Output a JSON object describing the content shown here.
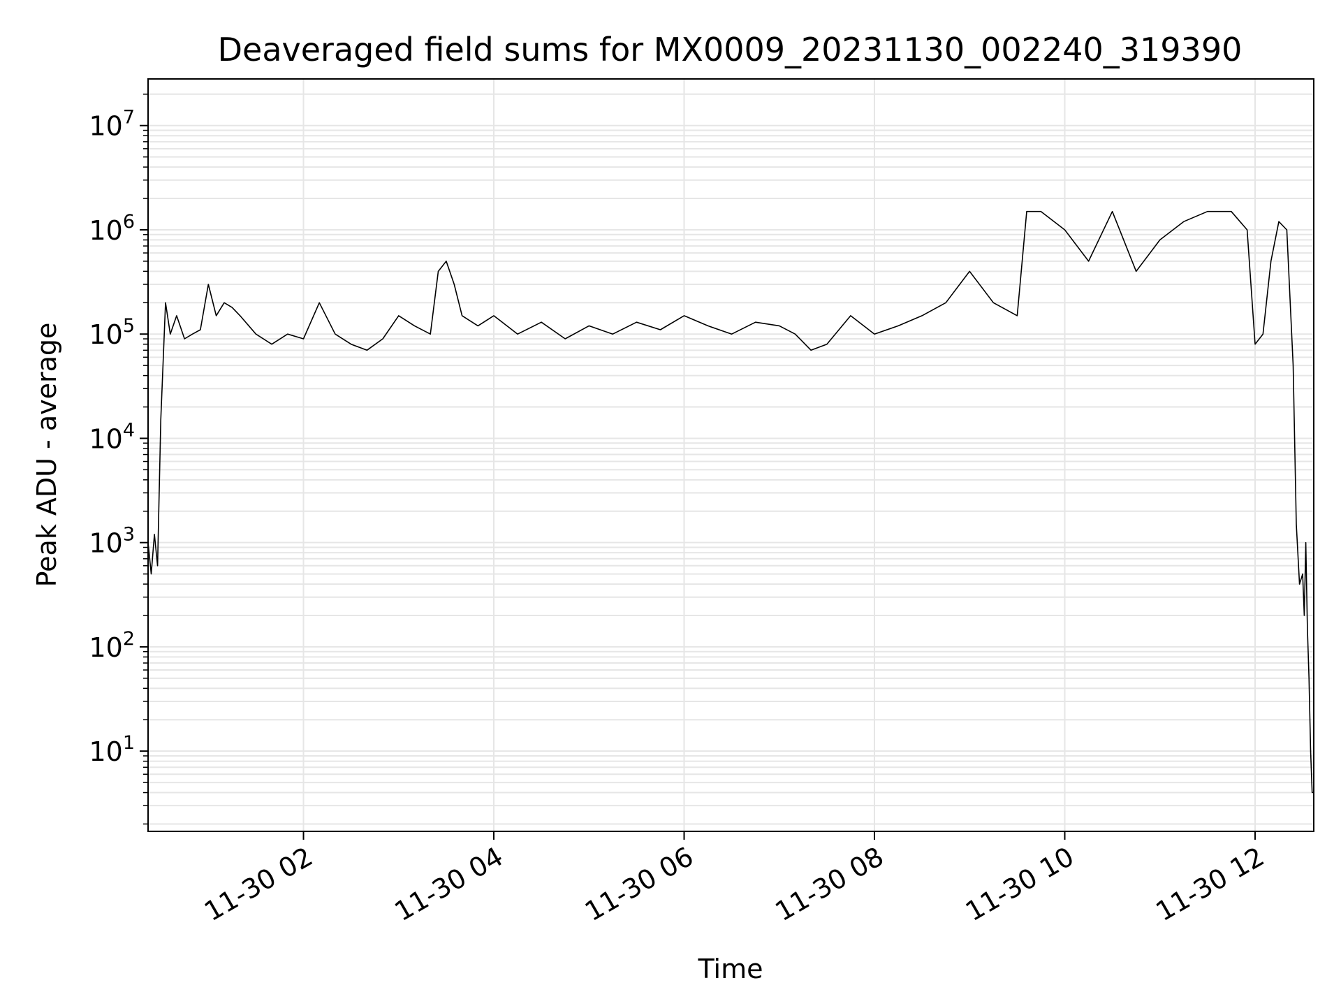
{
  "chart_data": {
    "type": "line",
    "title": "Deaveraged field sums for MX0009_20231130_002240_319390",
    "xlabel": "Time",
    "ylabel": "Peak ADU - average",
    "y_scale": "log",
    "ylim": [
      1.7,
      28000000
    ],
    "xlim": [
      "2023-11-30 00:22",
      "2023-11-30 12:37"
    ],
    "grid": true,
    "grid_color": "#e6e6e6",
    "line_color": "#000000",
    "x_ticks": [
      {
        "value": "2023-11-30 02:00",
        "label": "11-30 02"
      },
      {
        "value": "2023-11-30 04:00",
        "label": "11-30 04"
      },
      {
        "value": "2023-11-30 06:00",
        "label": "11-30 06"
      },
      {
        "value": "2023-11-30 08:00",
        "label": "11-30 08"
      },
      {
        "value": "2023-11-30 10:00",
        "label": "11-30 10"
      },
      {
        "value": "2023-11-30 12:00",
        "label": "11-30 12"
      }
    ],
    "y_ticks": [
      {
        "value": 10,
        "base": "10",
        "exp": "1"
      },
      {
        "value": 100,
        "base": "10",
        "exp": "2"
      },
      {
        "value": 1000,
        "base": "10",
        "exp": "3"
      },
      {
        "value": 10000,
        "base": "10",
        "exp": "4"
      },
      {
        "value": 100000,
        "base": "10",
        "exp": "5"
      },
      {
        "value": 1000000,
        "base": "10",
        "exp": "6"
      },
      {
        "value": 10000000,
        "base": "10",
        "exp": "7"
      }
    ],
    "series": [
      {
        "x": [
          "2023-11-30 00:22",
          "2023-11-30 00:24",
          "2023-11-30 00:26",
          "2023-11-30 00:28",
          "2023-11-30 00:30",
          "2023-11-30 00:33",
          "2023-11-30 00:36",
          "2023-11-30 00:40",
          "2023-11-30 00:45",
          "2023-11-30 00:50",
          "2023-11-30 00:55",
          "2023-11-30 01:00",
          "2023-11-30 01:05",
          "2023-11-30 01:10",
          "2023-11-30 01:15",
          "2023-11-30 01:20",
          "2023-11-30 01:30",
          "2023-11-30 01:40",
          "2023-11-30 01:50",
          "2023-11-30 02:00",
          "2023-11-30 02:10",
          "2023-11-30 02:20",
          "2023-11-30 02:30",
          "2023-11-30 02:40",
          "2023-11-30 02:50",
          "2023-11-30 03:00",
          "2023-11-30 03:10",
          "2023-11-30 03:20",
          "2023-11-30 03:25",
          "2023-11-30 03:30",
          "2023-11-30 03:35",
          "2023-11-30 03:40",
          "2023-11-30 03:50",
          "2023-11-30 04:00",
          "2023-11-30 04:15",
          "2023-11-30 04:30",
          "2023-11-30 04:45",
          "2023-11-30 05:00",
          "2023-11-30 05:15",
          "2023-11-30 05:30",
          "2023-11-30 05:45",
          "2023-11-30 06:00",
          "2023-11-30 06:15",
          "2023-11-30 06:30",
          "2023-11-30 06:45",
          "2023-11-30 07:00",
          "2023-11-30 07:10",
          "2023-11-30 07:20",
          "2023-11-30 07:30",
          "2023-11-30 07:45",
          "2023-11-30 08:00",
          "2023-11-30 08:15",
          "2023-11-30 08:30",
          "2023-11-30 08:45",
          "2023-11-30 09:00",
          "2023-11-30 09:15",
          "2023-11-30 09:30",
          "2023-11-30 09:36",
          "2023-11-30 09:45",
          "2023-11-30 10:00",
          "2023-11-30 10:15",
          "2023-11-30 10:30",
          "2023-11-30 10:45",
          "2023-11-30 11:00",
          "2023-11-30 11:15",
          "2023-11-30 11:30",
          "2023-11-30 11:45",
          "2023-11-30 11:55",
          "2023-11-30 12:00",
          "2023-11-30 12:05",
          "2023-11-30 12:10",
          "2023-11-30 12:15",
          "2023-11-30 12:20",
          "2023-11-30 12:24",
          "2023-11-30 12:26",
          "2023-11-30 12:28",
          "2023-11-30 12:30",
          "2023-11-30 12:31",
          "2023-11-30 12:32",
          "2023-11-30 12:33",
          "2023-11-30 12:34",
          "2023-11-30 12:35",
          "2023-11-30 12:36",
          "2023-11-30 12:37"
        ],
        "y": [
          1000,
          500,
          1200,
          600,
          15000,
          200000,
          100000,
          150000,
          90000,
          100000,
          110000,
          300000,
          150000,
          200000,
          180000,
          150000,
          100000,
          80000,
          100000,
          90000,
          200000,
          100000,
          80000,
          70000,
          90000,
          150000,
          120000,
          100000,
          400000,
          500000,
          300000,
          150000,
          120000,
          150000,
          100000,
          130000,
          90000,
          120000,
          100000,
          130000,
          110000,
          150000,
          120000,
          100000,
          130000,
          120000,
          100000,
          70000,
          80000,
          150000,
          100000,
          120000,
          150000,
          200000,
          400000,
          200000,
          150000,
          1500000,
          1500000,
          1000000,
          500000,
          1500000,
          400000,
          800000,
          1200000,
          1500000,
          1500000,
          1000000,
          80000,
          100000,
          500000,
          1200000,
          1000000,
          50000,
          1500,
          400,
          500,
          200,
          1000,
          150,
          50,
          10,
          4,
          4
        ]
      }
    ]
  }
}
